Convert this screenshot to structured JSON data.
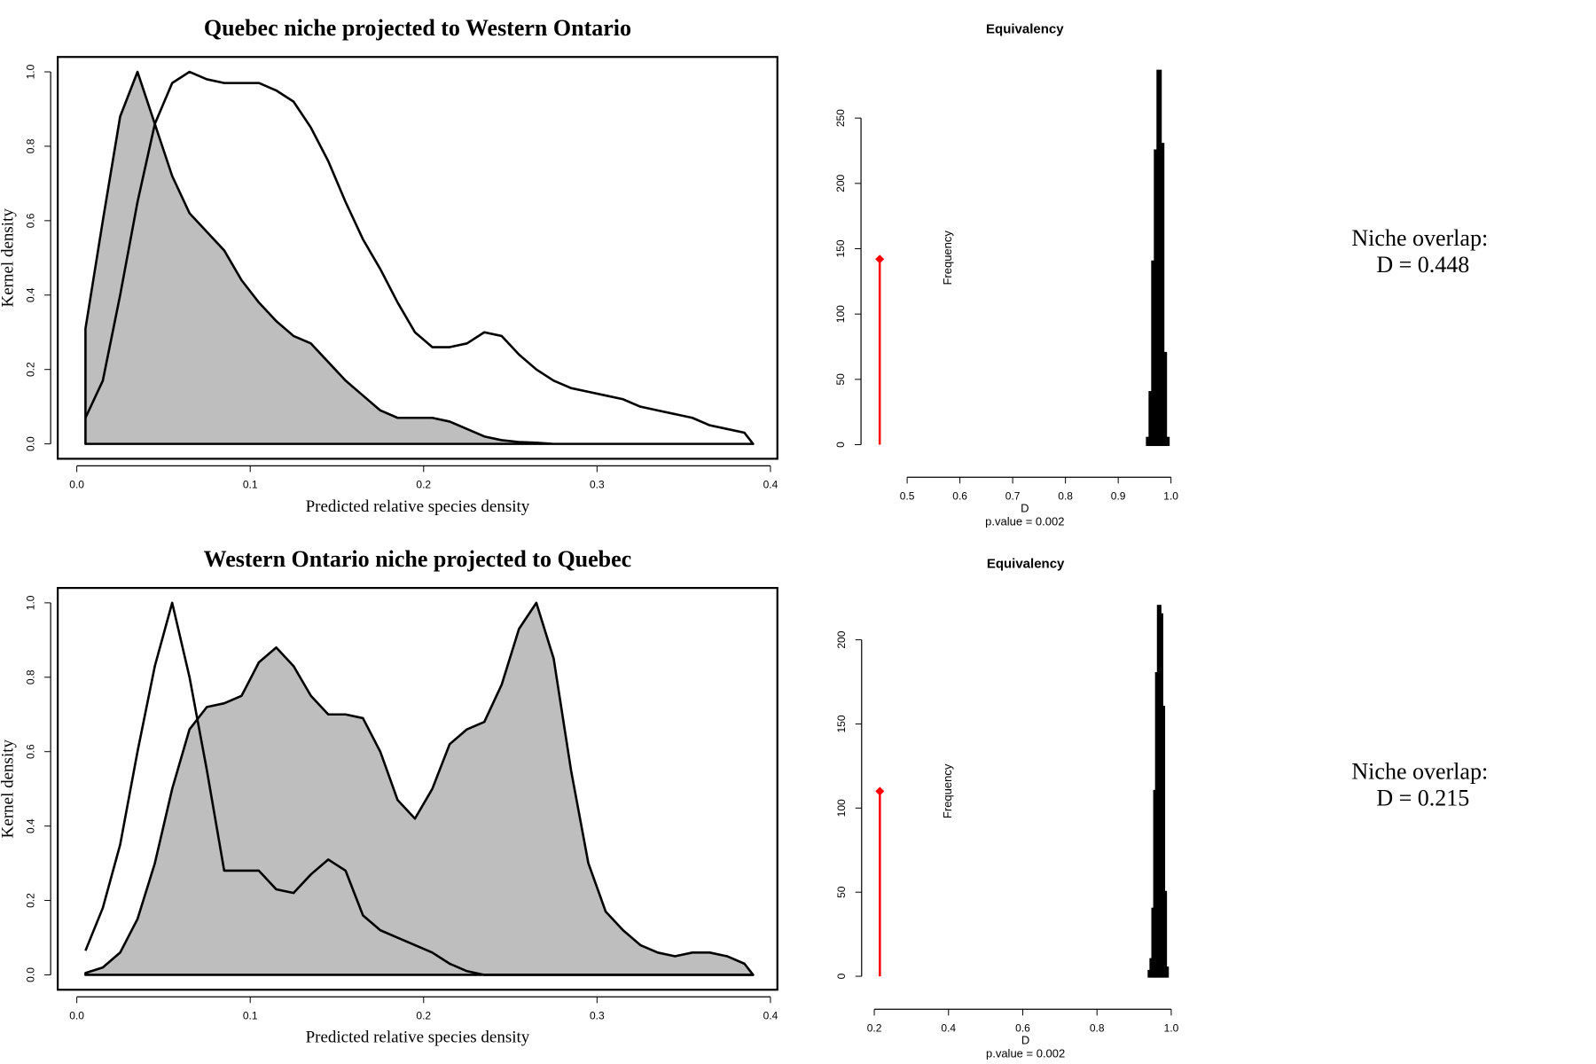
{
  "chart_data": [
    {
      "type": "density",
      "title": "Quebec niche projected to Western Ontario",
      "x_label": "Predicted relative species density",
      "y_label": "Kernel density",
      "x": [
        0.005,
        0.015,
        0.025,
        0.035,
        0.045,
        0.055,
        0.065,
        0.075,
        0.085,
        0.095,
        0.105,
        0.115,
        0.125,
        0.135,
        0.145,
        0.155,
        0.165,
        0.175,
        0.185,
        0.195,
        0.205,
        0.215,
        0.225,
        0.235,
        0.245,
        0.255,
        0.265,
        0.275,
        0.285,
        0.295,
        0.305,
        0.315,
        0.325,
        0.335,
        0.345,
        0.355,
        0.365,
        0.375,
        0.385,
        0.39
      ],
      "series": [
        {
          "color": "#000000",
          "fill": "#bebebe",
          "values": [
            0.31,
            0.6,
            0.88,
            1.0,
            0.86,
            0.72,
            0.62,
            0.57,
            0.52,
            0.44,
            0.38,
            0.33,
            0.29,
            0.27,
            0.22,
            0.17,
            0.13,
            0.09,
            0.07,
            0.07,
            0.07,
            0.06,
            0.04,
            0.02,
            0.01,
            0.005,
            0.003,
            0,
            0,
            0,
            0,
            0,
            0,
            0,
            0,
            0,
            0,
            0,
            0,
            0
          ]
        },
        {
          "color": "#000000",
          "values": [
            0.07,
            0.17,
            0.4,
            0.65,
            0.86,
            0.97,
            1.0,
            0.98,
            0.97,
            0.97,
            0.97,
            0.95,
            0.92,
            0.85,
            0.76,
            0.65,
            0.55,
            0.47,
            0.38,
            0.3,
            0.26,
            0.26,
            0.27,
            0.3,
            0.29,
            0.24,
            0.2,
            0.17,
            0.15,
            0.14,
            0.13,
            0.12,
            0.1,
            0.09,
            0.08,
            0.07,
            0.05,
            0.04,
            0.03,
            0
          ]
        }
      ],
      "xlim": [
        -0.011,
        0.404
      ],
      "ylim": [
        -0.04,
        1.04
      ],
      "xticks": [
        {
          "value": 0,
          "label": "0.0"
        },
        0.1,
        0.2,
        0.3,
        0.4
      ],
      "yticks": [
        {
          "value": 0,
          "label": "0.0"
        },
        0.2,
        0.4,
        0.6,
        0.8,
        {
          "value": 1,
          "label": "1.0"
        }
      ]
    },
    {
      "type": "histogram",
      "title": "Equivalency",
      "x_label": "D",
      "subtitle": "p.value =  0.002",
      "y_label": "Frequency",
      "bins": [
        0.955,
        0.96,
        0.965,
        0.97,
        0.975,
        0.98,
        0.985,
        0.99,
        0.995
      ],
      "counts": [
        5,
        40,
        140,
        225,
        286,
        230,
        70,
        5
      ],
      "color": "#000000",
      "observed_value": 0.448,
      "observed_height": 142,
      "observed_color": "#ff0000",
      "xlim": [
        0.426,
        1.02
      ],
      "ylim": [
        -10,
        296
      ],
      "xticks": [
        0.5,
        0.6,
        0.7,
        0.8,
        0.9,
        {
          "value": 1,
          "label": "1.0"
        }
      ],
      "yticks": [
        0,
        50,
        100,
        150,
        200,
        250
      ],
      "annotation": [
        "Niche overlap:",
        "D =  0.448"
      ]
    },
    {
      "type": "density",
      "title": "Western Ontario niche projected to Quebec",
      "x_label": "Predicted relative species density",
      "y_label": "Kernel density",
      "x": [
        0.005,
        0.015,
        0.025,
        0.035,
        0.045,
        0.055,
        0.065,
        0.075,
        0.085,
        0.095,
        0.105,
        0.115,
        0.125,
        0.135,
        0.145,
        0.155,
        0.165,
        0.175,
        0.185,
        0.195,
        0.205,
        0.215,
        0.225,
        0.235,
        0.245,
        0.255,
        0.265,
        0.275,
        0.285,
        0.295,
        0.305,
        0.315,
        0.325,
        0.335,
        0.345,
        0.355,
        0.365,
        0.375,
        0.385,
        0.39
      ],
      "series": [
        {
          "color": "#000000",
          "fill": "#bebebe",
          "values": [
            0.005,
            0.02,
            0.06,
            0.15,
            0.3,
            0.5,
            0.66,
            0.72,
            0.73,
            0.75,
            0.84,
            0.88,
            0.83,
            0.75,
            0.7,
            0.7,
            0.69,
            0.6,
            0.47,
            0.42,
            0.5,
            0.62,
            0.66,
            0.68,
            0.78,
            0.93,
            1.0,
            0.85,
            0.55,
            0.3,
            0.17,
            0.12,
            0.08,
            0.06,
            0.05,
            0.06,
            0.06,
            0.05,
            0.03,
            0
          ]
        },
        {
          "color": "#000000",
          "values": [
            0.065,
            0.18,
            0.35,
            0.6,
            0.83,
            1.0,
            0.8,
            0.55,
            0.28,
            0.28,
            0.28,
            0.23,
            0.22,
            0.27,
            0.31,
            0.28,
            0.16,
            0.12,
            0.1,
            0.08,
            0.06,
            0.03,
            0.01,
            0,
            0,
            0,
            0,
            0,
            0,
            0,
            0,
            0,
            0,
            0,
            0,
            0,
            0,
            0,
            0,
            0
          ]
        }
      ],
      "xlim": [
        -0.011,
        0.404
      ],
      "ylim": [
        -0.04,
        1.04
      ],
      "xticks": [
        {
          "value": 0,
          "label": "0.0"
        },
        0.1,
        0.2,
        0.3,
        0.4
      ],
      "yticks": [
        {
          "value": 0,
          "label": "0.0"
        },
        0.2,
        0.4,
        0.6,
        0.8,
        {
          "value": 1,
          "label": "1.0"
        }
      ]
    },
    {
      "type": "histogram",
      "title": "Equivalency",
      "x_label": "D",
      "subtitle": "p.value =  0.002",
      "y_label": "Frequency",
      "bins": [
        0.94,
        0.945,
        0.95,
        0.955,
        0.96,
        0.965,
        0.97,
        0.975,
        0.98,
        0.985,
        0.99
      ],
      "counts": [
        3,
        10,
        40,
        110,
        180,
        220,
        215,
        160,
        50,
        5
      ],
      "color": "#000000",
      "observed_value": 0.215,
      "observed_height": 110,
      "observed_color": "#ff0000",
      "xlim": [
        0.185,
        1.03
      ],
      "ylim": [
        -8,
        228
      ],
      "xticks": [
        0.2,
        0.4,
        0.6,
        0.8,
        {
          "value": 1,
          "label": "1.0"
        }
      ],
      "yticks": [
        0,
        50,
        100,
        150,
        200
      ],
      "annotation": [
        "Niche overlap:",
        "D =  0.215"
      ]
    }
  ]
}
